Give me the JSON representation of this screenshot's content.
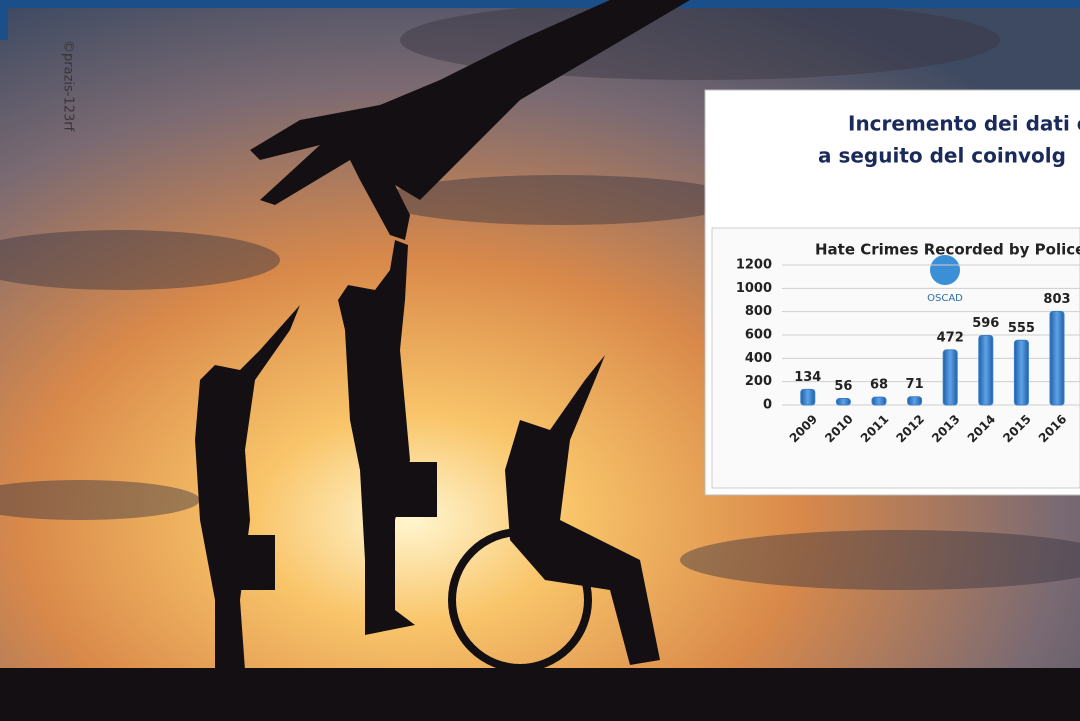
{
  "credit": "©prazis-123rf",
  "inset": {
    "title_lines": [
      "Incremento dei dati c",
      "a seguito del coinvolg"
    ],
    "logo": "OSCAD"
  },
  "chart_data": {
    "type": "bar",
    "title": "Hate Crimes Recorded by Police",
    "categories": [
      "2009",
      "2010",
      "2011",
      "2012",
      "2013",
      "2014",
      "2015",
      "2016"
    ],
    "values": [
      134,
      56,
      68,
      71,
      472,
      596,
      555,
      803
    ],
    "color": "#3a7dc9",
    "ylim": [
      0,
      1200
    ],
    "yticks": [
      0,
      200,
      400,
      600,
      800,
      1000,
      1200
    ],
    "grid": true
  }
}
